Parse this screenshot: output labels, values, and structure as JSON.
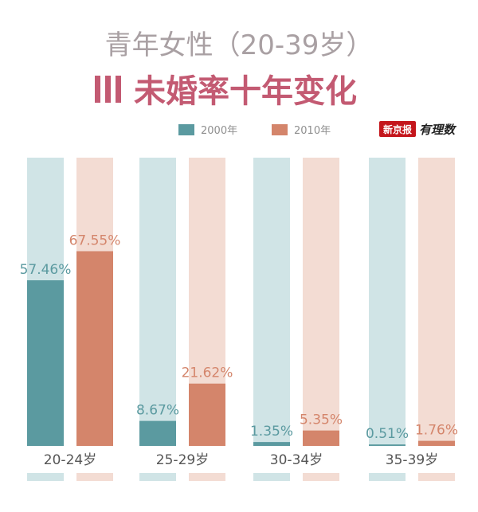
{
  "header": {
    "title_line1": "青年女性（20-39岁）",
    "title_line2": "未婚率十年变化"
  },
  "logo": {
    "brand": "新京报",
    "script": "有理数"
  },
  "colors": {
    "series_2000": "#5b9aa0",
    "series_2010": "#d4856b",
    "track_2000": "#d0e4e6",
    "track_2010": "#f3dcd3",
    "label_2000": "#5b9aa0",
    "label_2010": "#d4856b",
    "title_bar": "#c35a72"
  },
  "chart_data": {
    "type": "bar",
    "title": "青年女性（20-39岁）未婚率十年变化",
    "categories": [
      "20-24岁",
      "25-29岁",
      "30-34岁",
      "35-39岁"
    ],
    "series": [
      {
        "name": "2000年",
        "values": [
          57.46,
          8.67,
          1.35,
          0.51
        ],
        "labels": [
          "57.46%",
          "8.67%",
          "1.35%",
          "0.51%"
        ]
      },
      {
        "name": "2010年",
        "values": [
          67.55,
          21.62,
          5.35,
          1.76
        ],
        "labels": [
          "67.55%",
          "21.62%",
          "5.35%",
          "1.76%"
        ]
      }
    ],
    "ylim": [
      0,
      100
    ],
    "grid": false,
    "legend": "top"
  }
}
